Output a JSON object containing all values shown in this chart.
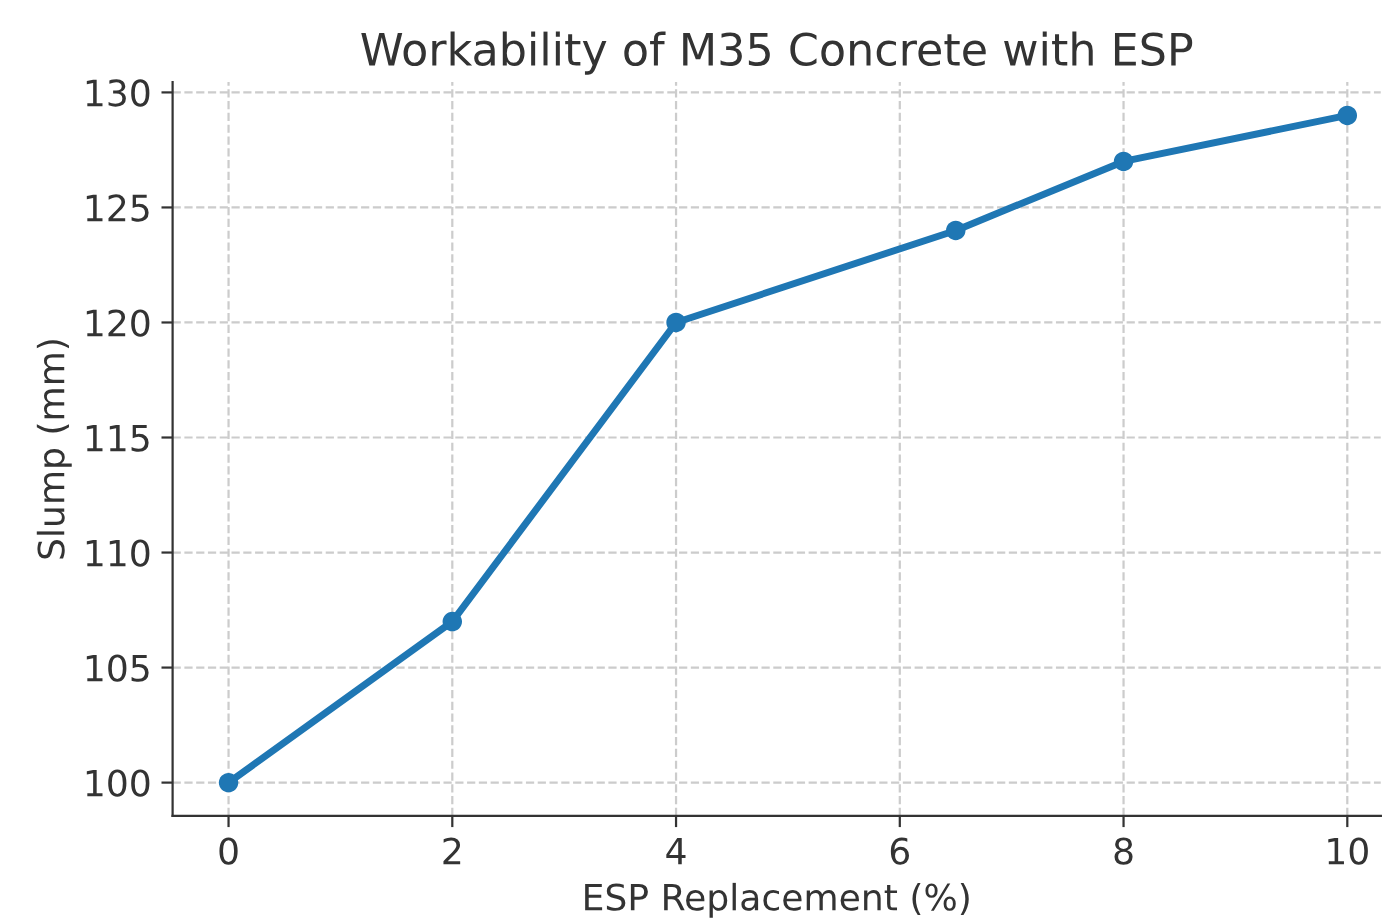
{
  "chart_data": {
    "type": "line",
    "title": "Workability of M35 Concrete with ESP",
    "xlabel": "ESP Replacement (%)",
    "ylabel": "Slump (mm)",
    "x": [
      0,
      2,
      4,
      6.5,
      8,
      10
    ],
    "series": [
      {
        "color": "#1f77b4",
        "values": [
          100,
          107,
          120,
          124,
          127,
          129
        ]
      }
    ],
    "xlim": [
      -0.5,
      10.3
    ],
    "xticks": [
      0,
      2,
      4,
      6,
      8,
      10
    ],
    "ylim": [
      98.55,
      130.45
    ],
    "yticks": [
      100,
      105,
      110,
      115,
      120,
      125,
      130
    ],
    "grid": true,
    "marker": "circle",
    "line_style": "solid",
    "legend": false
  }
}
